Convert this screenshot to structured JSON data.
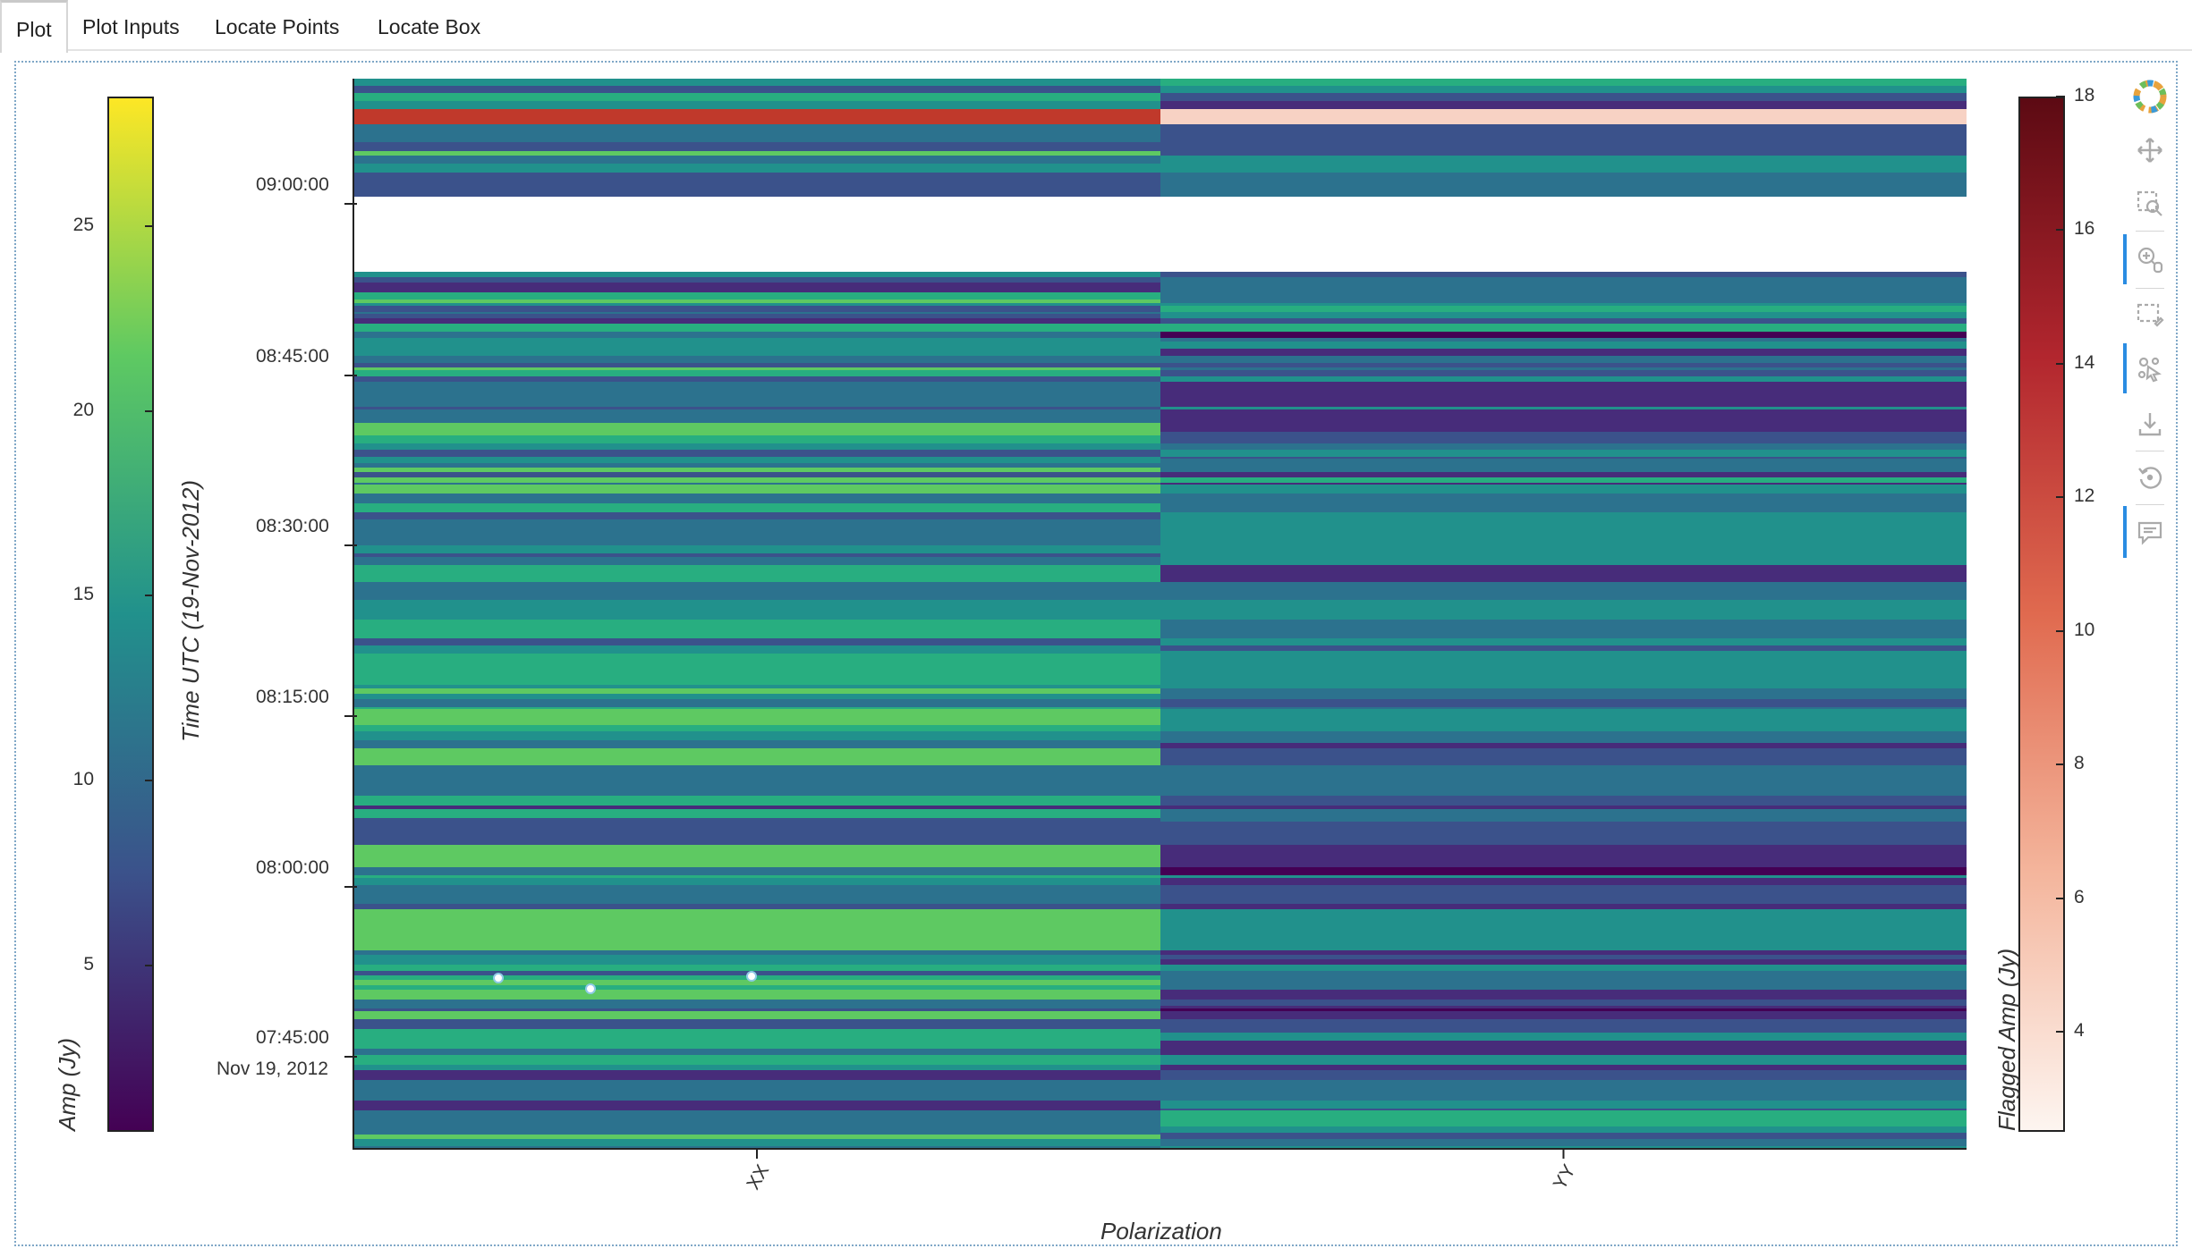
{
  "tabs": [
    {
      "label": "Plot",
      "active": true
    },
    {
      "label": "Plot Inputs",
      "active": false
    },
    {
      "label": "Locate Points",
      "active": false
    },
    {
      "label": "Locate Box",
      "active": false
    }
  ],
  "left_colorbar": {
    "title": "Amp (Jy)",
    "ticks": [
      "25",
      "20",
      "15",
      "10",
      "5"
    ],
    "palette": [
      "#440154",
      "#3b528b",
      "#21918c",
      "#5ec962",
      "#fde725"
    ]
  },
  "right_colorbar": {
    "title": "Flagged Amp (Jy)",
    "ticks": [
      "18",
      "16",
      "14",
      "12",
      "10",
      "8",
      "6",
      "4"
    ],
    "palette": [
      "#fdf5f0",
      "#f4b59c",
      "#e06a4f",
      "#b2262e",
      "#5c0a13"
    ]
  },
  "chart_data": {
    "type": "heatmap",
    "title": "",
    "xlabel": "Polarization",
    "ylabel": "Time UTC (19-Nov-2012)",
    "categories": [
      "XX",
      "YY"
    ],
    "y_ticks": [
      "09:00:00",
      "08:45:00",
      "08:30:00",
      "08:15:00",
      "08:00:00",
      "07:45:00"
    ],
    "y_date_label": "Nov 19, 2012",
    "colorbar_amp_range": [
      0.5,
      28.5
    ],
    "colorbar_flagged_range": [
      2.5,
      18
    ],
    "grid": false
  },
  "toolbar": {
    "icons": [
      "bokeh-logo-icon",
      "pan-icon",
      "box-zoom-icon",
      "wheel-zoom-icon",
      "box-select-icon",
      "tap-icon",
      "save-icon",
      "reset-icon",
      "hover-icon"
    ]
  }
}
